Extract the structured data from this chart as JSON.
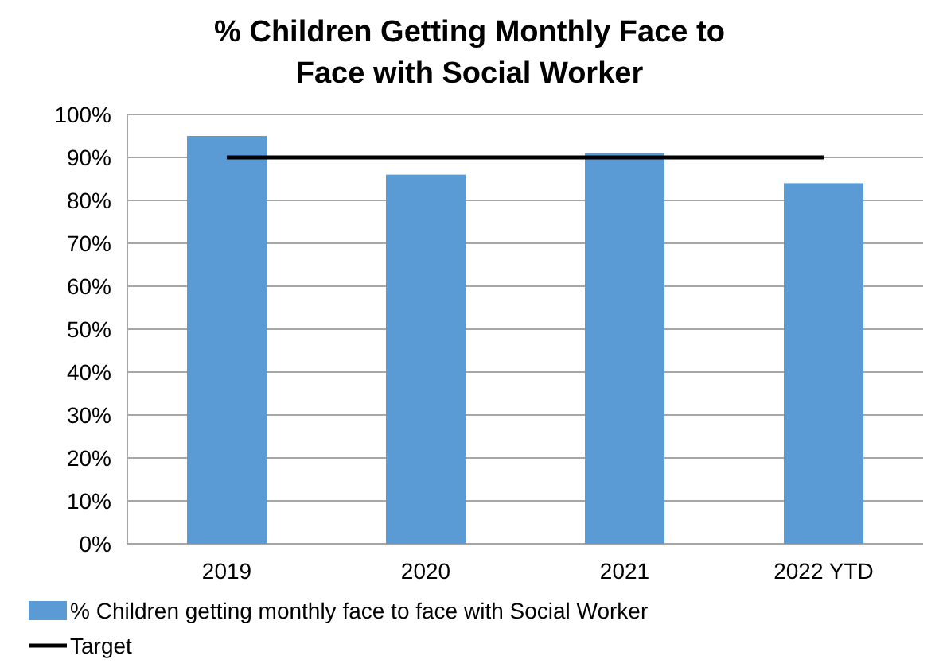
{
  "chart_data": {
    "type": "bar",
    "title": "% Children Getting Monthly Face to Face with Social Worker",
    "categories": [
      "2019",
      "2020",
      "2021",
      "2022 YTD"
    ],
    "series": [
      {
        "name": "% Children getting monthly face to face with Social Worker",
        "color": "#5b9bd5",
        "values": [
          95,
          86,
          91,
          84
        ]
      },
      {
        "name": "Target",
        "type": "line",
        "color": "#000000",
        "values": [
          90,
          90,
          90,
          90
        ]
      }
    ],
    "ylim": [
      0,
      100
    ],
    "yticks": [
      {
        "value": 0,
        "label": "0%"
      },
      {
        "value": 10,
        "label": "10%"
      },
      {
        "value": 20,
        "label": "20%"
      },
      {
        "value": 30,
        "label": "30%"
      },
      {
        "value": 40,
        "label": "40%"
      },
      {
        "value": 50,
        "label": "50%"
      },
      {
        "value": 60,
        "label": "60%"
      },
      {
        "value": 70,
        "label": "70%"
      },
      {
        "value": 80,
        "label": "80%"
      },
      {
        "value": 90,
        "label": "90%"
      },
      {
        "value": 100,
        "label": "100%"
      }
    ],
    "grid": "y",
    "legend": "bottom left"
  }
}
